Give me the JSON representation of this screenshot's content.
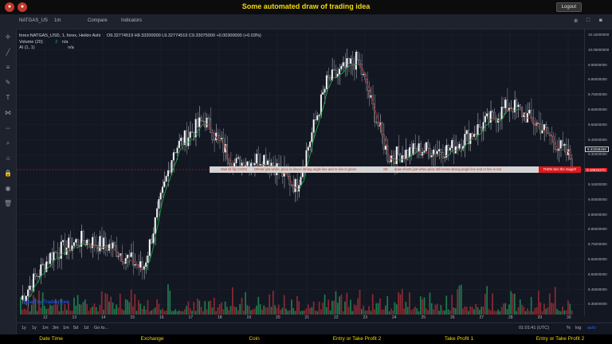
{
  "app": {
    "title": "Some automated draw of trading idea",
    "logout_label": "Logout"
  },
  "toolbar": {
    "symbol": "NATGAS_US",
    "interval": "1m",
    "compare_label": "Compare",
    "indicators_label": "Indicators"
  },
  "legend": {
    "main": "forex:NATGAS_USD, 1, forex, Heikin Ashi",
    "ohlc": "O9.32774519  H9.33200000  L9.32774519  C9.33075000  +0.00300000 (+0.03%)",
    "volume": "Volume (20)",
    "volume_value": "2",
    "volume_na": "n/a",
    "ai": "AI (1, 1)",
    "ai_na": "n/a"
  },
  "price_axis": [
    "10.15000000",
    "10.05000000",
    "9.95000000",
    "9.85000000",
    "9.75000000",
    "9.65000000",
    "9.55000000",
    "9.45000000",
    "9.35000000",
    "9.25000000",
    "9.15000000",
    "9.05000000",
    "8.95000000",
    "8.85000000",
    "8.75000000",
    "8.65000000",
    "8.55000000",
    "8.45000000",
    "8.35000000"
  ],
  "last_price": "9.33258258",
  "signal_price": "9.18833470",
  "time_axis": [
    "12",
    "13",
    "14",
    "15",
    "16",
    "17",
    "18",
    "19",
    "20",
    "21",
    "22",
    "23",
    "24",
    "25",
    "26",
    "27",
    "28",
    "29",
    "30"
  ],
  "signal_texts": [
    "Wait till flip CHOS",
    "DRAW just when: price is above strong angle line and AI line is green",
    "OK",
    "draw shorts just when price still below strong angle line and AI line is red",
    "THEN See the magic!!"
  ],
  "watermark": "Chart by TradingView",
  "bottombar": {
    "ranges": [
      "1y",
      "1y",
      "1m",
      "3m",
      "1m",
      "5d",
      "1d",
      "Go to..."
    ],
    "clock": "01:01:41 (UTC)",
    "pct": "%",
    "log": "log",
    "auto": "auto"
  },
  "footer": [
    "Date Time",
    "Exchange",
    "Coin",
    "Entry or Take Profit 2",
    "Take Profit 1",
    "Entry or Take Profit 2"
  ],
  "colors": {
    "up": "#26a69a",
    "down": "#ef5350",
    "accent": "#f5d90a",
    "background": "#131722"
  },
  "icons": [
    "cursor-icon",
    "trend-line-icon",
    "fib-icon",
    "brush-icon",
    "text-icon",
    "pattern-icon",
    "measure-icon",
    "zoom-icon",
    "magnet-icon",
    "lock-icon",
    "eye-icon",
    "trash-icon"
  ],
  "chart_data": {
    "type": "candlestick",
    "style": "Heikin Ashi",
    "x_labels": [
      "12",
      "13",
      "14",
      "15",
      "16",
      "17",
      "18",
      "19",
      "20",
      "21",
      "22",
      "23",
      "24",
      "25",
      "26",
      "27",
      "28",
      "29",
      "30"
    ],
    "close_approx": [
      8.4,
      8.7,
      8.8,
      8.75,
      8.6,
      9.4,
      9.6,
      9.3,
      9.35,
      9.15,
      9.85,
      10.0,
      9.35,
      9.4,
      9.4,
      9.55,
      9.7,
      9.55,
      9.33
    ],
    "ylim": [
      8.3,
      10.2
    ]
  }
}
